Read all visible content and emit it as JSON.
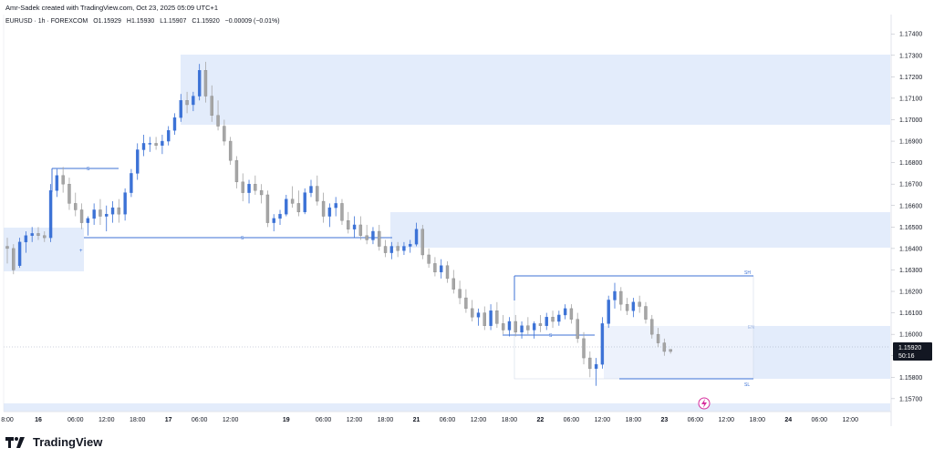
{
  "header": {
    "credit": "Amr-Sadek created with TradingView.com, Oct 23, 2025 05:09 UTC+1",
    "symbol_line": "EURUSD · 1h · FOREXCOM",
    "open": "O1.15929",
    "high": "H1.15930",
    "low": "L1.15907",
    "close": "C1.15920",
    "change": "−0.00009 (−0.01%)"
  },
  "brand": {
    "name": "TradingView"
  },
  "price_tag": {
    "price": "1.15920",
    "countdown": "50:16",
    "color": "#131722"
  },
  "colors": {
    "up": "#3c72d6",
    "down": "#a6a6a6",
    "zone": "#e3ecfb",
    "line": "#3c72d6",
    "alert": "#d62e9e"
  },
  "chart_data": {
    "type": "candlestick",
    "symbol": "EURUSD",
    "interval": "1h",
    "y_ticks": [
      1.174,
      1.173,
      1.172,
      1.171,
      1.17,
      1.169,
      1.168,
      1.167,
      1.166,
      1.165,
      1.164,
      1.163,
      1.162,
      1.161,
      1.16,
      1.159,
      1.158,
      1.157
    ],
    "y_tick_labels": [
      "1.17400",
      "1.17300",
      "1.17200",
      "1.17100",
      "1.17000",
      "1.16900",
      "1.16800",
      "1.16700",
      "1.16600",
      "1.16500",
      "1.16400",
      "1.16300",
      "1.16200",
      "1.16100",
      "1.16000",
      "1.15900",
      "1.15800",
      "1.15700"
    ],
    "ylim": [
      1.1564,
      1.1749
    ],
    "x_range": [
      0,
      284
    ],
    "x_ticks": [
      {
        "i": 0,
        "label": "8:00"
      },
      {
        "i": 10,
        "label": "16"
      },
      {
        "i": 22,
        "label": "06:00"
      },
      {
        "i": 32,
        "label": "12:00"
      },
      {
        "i": 42,
        "label": "18:00"
      },
      {
        "i": 52,
        "label": "17"
      },
      {
        "i": 62,
        "label": "06:00"
      },
      {
        "i": 72,
        "label": "12:00"
      },
      {
        "i": 90,
        "label": "19"
      },
      {
        "i": 102,
        "label": "06:00"
      },
      {
        "i": 112,
        "label": "12:00"
      },
      {
        "i": 122,
        "label": "18:00"
      },
      {
        "i": 132,
        "label": "21"
      },
      {
        "i": 142,
        "label": "06:00"
      },
      {
        "i": 152,
        "label": "12:00"
      },
      {
        "i": 162,
        "label": "18:00"
      },
      {
        "i": 172,
        "label": "22"
      },
      {
        "i": 182,
        "label": "06:00"
      },
      {
        "i": 192,
        "label": "12:00"
      },
      {
        "i": 202,
        "label": "18:00"
      },
      {
        "i": 212,
        "label": "23"
      },
      {
        "i": 222,
        "label": "06:00"
      },
      {
        "i": 232,
        "label": "12:00"
      },
      {
        "i": 242,
        "label": "18:00"
      },
      {
        "i": 252,
        "label": "24"
      },
      {
        "i": 262,
        "label": "06:00"
      },
      {
        "i": 272,
        "label": "12:00"
      }
    ],
    "candles": [
      [
        0,
        1.1641,
        1.1645,
        1.1633,
        1.164
      ],
      [
        2,
        1.164,
        1.1642,
        1.1628,
        1.163
      ],
      [
        4,
        1.1632,
        1.1645,
        1.1631,
        1.1643
      ],
      [
        6,
        1.1643,
        1.1648,
        1.1638,
        1.1646
      ],
      [
        8,
        1.1646,
        1.165,
        1.1643,
        1.1647
      ],
      [
        10,
        1.1647,
        1.165,
        1.1644,
        1.1646
      ],
      [
        12,
        1.1646,
        1.1648,
        1.1643,
        1.1645
      ],
      [
        14,
        1.1645,
        1.167,
        1.1643,
        1.1667
      ],
      [
        16,
        1.1667,
        1.1677,
        1.1664,
        1.1674
      ],
      [
        18,
        1.1674,
        1.1678,
        1.1666,
        1.167
      ],
      [
        20,
        1.167,
        1.1673,
        1.1658,
        1.1661
      ],
      [
        22,
        1.1661,
        1.1666,
        1.1655,
        1.1658
      ],
      [
        24,
        1.1658,
        1.1661,
        1.1649,
        1.1652
      ],
      [
        26,
        1.1652,
        1.1655,
        1.1646,
        1.1654
      ],
      [
        28,
        1.1654,
        1.1661,
        1.1651,
        1.1658
      ],
      [
        30,
        1.1658,
        1.1663,
        1.1651,
        1.1655
      ],
      [
        32,
        1.1655,
        1.166,
        1.1648,
        1.1656
      ],
      [
        34,
        1.1656,
        1.1662,
        1.1652,
        1.1659
      ],
      [
        36,
        1.1659,
        1.1663,
        1.1652,
        1.1656
      ],
      [
        38,
        1.1656,
        1.1668,
        1.1653,
        1.1666
      ],
      [
        40,
        1.1666,
        1.1677,
        1.1664,
        1.1675
      ],
      [
        42,
        1.1675,
        1.1689,
        1.1672,
        1.1686
      ],
      [
        44,
        1.1686,
        1.1693,
        1.1683,
        1.1689
      ],
      [
        46,
        1.1689,
        1.1692,
        1.1685,
        1.1689
      ],
      [
        48,
        1.1689,
        1.1692,
        1.1686,
        1.1688
      ],
      [
        50,
        1.1688,
        1.1693,
        1.1684,
        1.169
      ],
      [
        52,
        1.169,
        1.1697,
        1.1688,
        1.1695
      ],
      [
        54,
        1.1695,
        1.1703,
        1.1693,
        1.1701
      ],
      [
        56,
        1.1701,
        1.1712,
        1.1699,
        1.1709
      ],
      [
        58,
        1.1709,
        1.1713,
        1.1703,
        1.1707
      ],
      [
        60,
        1.1707,
        1.1713,
        1.1704,
        1.1711
      ],
      [
        62,
        1.1711,
        1.1726,
        1.1709,
        1.1723
      ],
      [
        64,
        1.1723,
        1.1727,
        1.1708,
        1.1711
      ],
      [
        66,
        1.1711,
        1.1716,
        1.1699,
        1.1702
      ],
      [
        68,
        1.1702,
        1.1709,
        1.1695,
        1.1697
      ],
      [
        70,
        1.1697,
        1.17,
        1.1688,
        1.169
      ],
      [
        72,
        1.169,
        1.1692,
        1.1679,
        1.1681
      ],
      [
        74,
        1.1681,
        1.1683,
        1.1668,
        1.1671
      ],
      [
        76,
        1.1671,
        1.1675,
        1.1662,
        1.1666
      ],
      [
        78,
        1.1666,
        1.1672,
        1.1661,
        1.167
      ],
      [
        80,
        1.167,
        1.1674,
        1.1665,
        1.1667
      ],
      [
        82,
        1.1667,
        1.167,
        1.1661,
        1.1665
      ],
      [
        84,
        1.1665,
        1.1667,
        1.165,
        1.1652
      ],
      [
        86,
        1.1652,
        1.1656,
        1.1648,
        1.1654
      ],
      [
        88,
        1.1654,
        1.1658,
        1.1651,
        1.1656
      ],
      [
        90,
        1.1656,
        1.1665,
        1.1655,
        1.1663
      ],
      [
        92,
        1.1663,
        1.1669,
        1.1659,
        1.1661
      ],
      [
        94,
        1.1661,
        1.1667,
        1.1655,
        1.1657
      ],
      [
        96,
        1.1657,
        1.1668,
        1.1656,
        1.1666
      ],
      [
        98,
        1.1666,
        1.1672,
        1.1664,
        1.1669
      ],
      [
        100,
        1.1669,
        1.1674,
        1.166,
        1.1662
      ],
      [
        102,
        1.1662,
        1.1666,
        1.1652,
        1.1655
      ],
      [
        104,
        1.1655,
        1.1661,
        1.165,
        1.1659
      ],
      [
        106,
        1.1659,
        1.1664,
        1.1655,
        1.1661
      ],
      [
        108,
        1.1661,
        1.1663,
        1.1651,
        1.1653
      ],
      [
        110,
        1.1653,
        1.1657,
        1.1647,
        1.1649
      ],
      [
        112,
        1.1649,
        1.1655,
        1.1645,
        1.1651
      ],
      [
        114,
        1.1651,
        1.1655,
        1.1644,
        1.1646
      ],
      [
        116,
        1.1646,
        1.1651,
        1.1642,
        1.1644
      ],
      [
        118,
        1.1644,
        1.165,
        1.1642,
        1.1648
      ],
      [
        120,
        1.1648,
        1.1651,
        1.1639,
        1.1641
      ],
      [
        122,
        1.1641,
        1.1644,
        1.1636,
        1.1638
      ],
      [
        124,
        1.1638,
        1.1643,
        1.1635,
        1.1641
      ],
      [
        126,
        1.1641,
        1.1643,
        1.1636,
        1.1639
      ],
      [
        128,
        1.1639,
        1.1643,
        1.1637,
        1.1641
      ],
      [
        130,
        1.1641,
        1.1644,
        1.1638,
        1.1642
      ],
      [
        132,
        1.1642,
        1.1652,
        1.1641,
        1.1649
      ],
      [
        134,
        1.1649,
        1.1651,
        1.1635,
        1.1637
      ],
      [
        136,
        1.1637,
        1.164,
        1.1631,
        1.1633
      ],
      [
        138,
        1.1633,
        1.1636,
        1.1627,
        1.1629
      ],
      [
        140,
        1.1629,
        1.1635,
        1.1626,
        1.1632
      ],
      [
        142,
        1.1632,
        1.1634,
        1.1624,
        1.1626
      ],
      [
        144,
        1.1626,
        1.163,
        1.1619,
        1.1621
      ],
      [
        146,
        1.1621,
        1.1625,
        1.1614,
        1.1617
      ],
      [
        148,
        1.1617,
        1.1621,
        1.161,
        1.1612
      ],
      [
        150,
        1.1612,
        1.1616,
        1.1606,
        1.1608
      ],
      [
        152,
        1.1608,
        1.1612,
        1.1604,
        1.161
      ],
      [
        154,
        1.161,
        1.1613,
        1.1602,
        1.1604
      ],
      [
        156,
        1.1604,
        1.1614,
        1.1602,
        1.1611
      ],
      [
        158,
        1.1611,
        1.1615,
        1.1603,
        1.1605
      ],
      [
        160,
        1.1605,
        1.1609,
        1.16,
        1.1602
      ],
      [
        162,
        1.1602,
        1.1608,
        1.1599,
        1.1606
      ],
      [
        164,
        1.1606,
        1.1609,
        1.1599,
        1.1601
      ],
      [
        166,
        1.1601,
        1.1606,
        1.1598,
        1.1604
      ],
      [
        168,
        1.1604,
        1.1608,
        1.16,
        1.1602
      ],
      [
        170,
        1.1602,
        1.1606,
        1.1598,
        1.1605
      ],
      [
        172,
        1.1605,
        1.1609,
        1.1601,
        1.1604
      ],
      [
        174,
        1.1604,
        1.161,
        1.1602,
        1.1608
      ],
      [
        176,
        1.1608,
        1.1611,
        1.1603,
        1.1606
      ],
      [
        178,
        1.1606,
        1.1611,
        1.1604,
        1.1609
      ],
      [
        180,
        1.1609,
        1.1614,
        1.1607,
        1.1612
      ],
      [
        182,
        1.1612,
        1.1614,
        1.1605,
        1.1607
      ],
      [
        184,
        1.1607,
        1.161,
        1.1596,
        1.1598
      ],
      [
        186,
        1.1598,
        1.1601,
        1.1586,
        1.1589
      ],
      [
        188,
        1.1589,
        1.1592,
        1.158,
        1.1584
      ],
      [
        190,
        1.1584,
        1.1589,
        1.1576,
        1.1586
      ],
      [
        192,
        1.1586,
        1.1608,
        1.1584,
        1.1605
      ],
      [
        194,
        1.1605,
        1.1618,
        1.1603,
        1.1616
      ],
      [
        196,
        1.1616,
        1.1624,
        1.1612,
        1.162
      ],
      [
        198,
        1.162,
        1.1622,
        1.1611,
        1.1614
      ],
      [
        200,
        1.1614,
        1.1617,
        1.1609,
        1.1611
      ],
      [
        202,
        1.1611,
        1.1617,
        1.1608,
        1.1615
      ],
      [
        204,
        1.1615,
        1.1618,
        1.161,
        1.1613
      ],
      [
        206,
        1.1613,
        1.1615,
        1.1605,
        1.1607
      ],
      [
        208,
        1.1607,
        1.1609,
        1.1598,
        1.16
      ],
      [
        210,
        1.16,
        1.1603,
        1.1594,
        1.1596
      ],
      [
        212,
        1.1596,
        1.1598,
        1.159,
        1.1592
      ],
      [
        214,
        1.1593,
        1.1593,
        1.1591,
        1.1592
      ]
    ]
  }
}
